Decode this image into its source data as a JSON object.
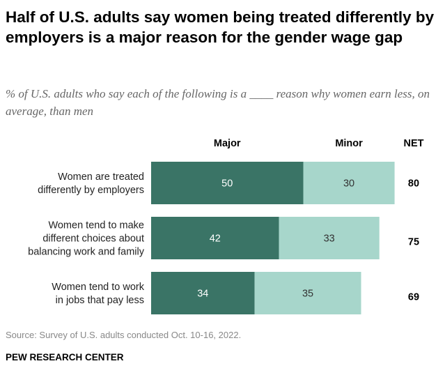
{
  "chart_data": {
    "type": "bar",
    "stacked": true,
    "orientation": "horizontal",
    "title": "Half of U.S. adults say women being treated differently by employers is a major reason for the gender wage gap",
    "subtitle": "% of U.S. adults who say each of the following is a ____ reason why women earn less, on average, than men",
    "categories": [
      [
        "Women are treated",
        "differently by employers"
      ],
      [
        "Women tend to make",
        "different choices about",
        "balancing work and family"
      ],
      [
        "Women tend to work",
        "in jobs that pay less"
      ]
    ],
    "series": [
      {
        "name": "Major",
        "values": [
          50,
          42,
          34
        ],
        "color": "#3a7466",
        "label_color": "#ffffff"
      },
      {
        "name": "Minor",
        "values": [
          30,
          33,
          35
        ],
        "color": "#a7d6cb",
        "label_color": "#333333"
      }
    ],
    "net": {
      "label": "NET",
      "values": [
        80,
        75,
        69
      ]
    },
    "xlim": [
      0,
      100
    ],
    "grid": false,
    "legend": "top"
  },
  "source": "Source: Survey of U.S. adults conducted Oct. 10-16, 2022.",
  "organization": "PEW RESEARCH CENTER"
}
